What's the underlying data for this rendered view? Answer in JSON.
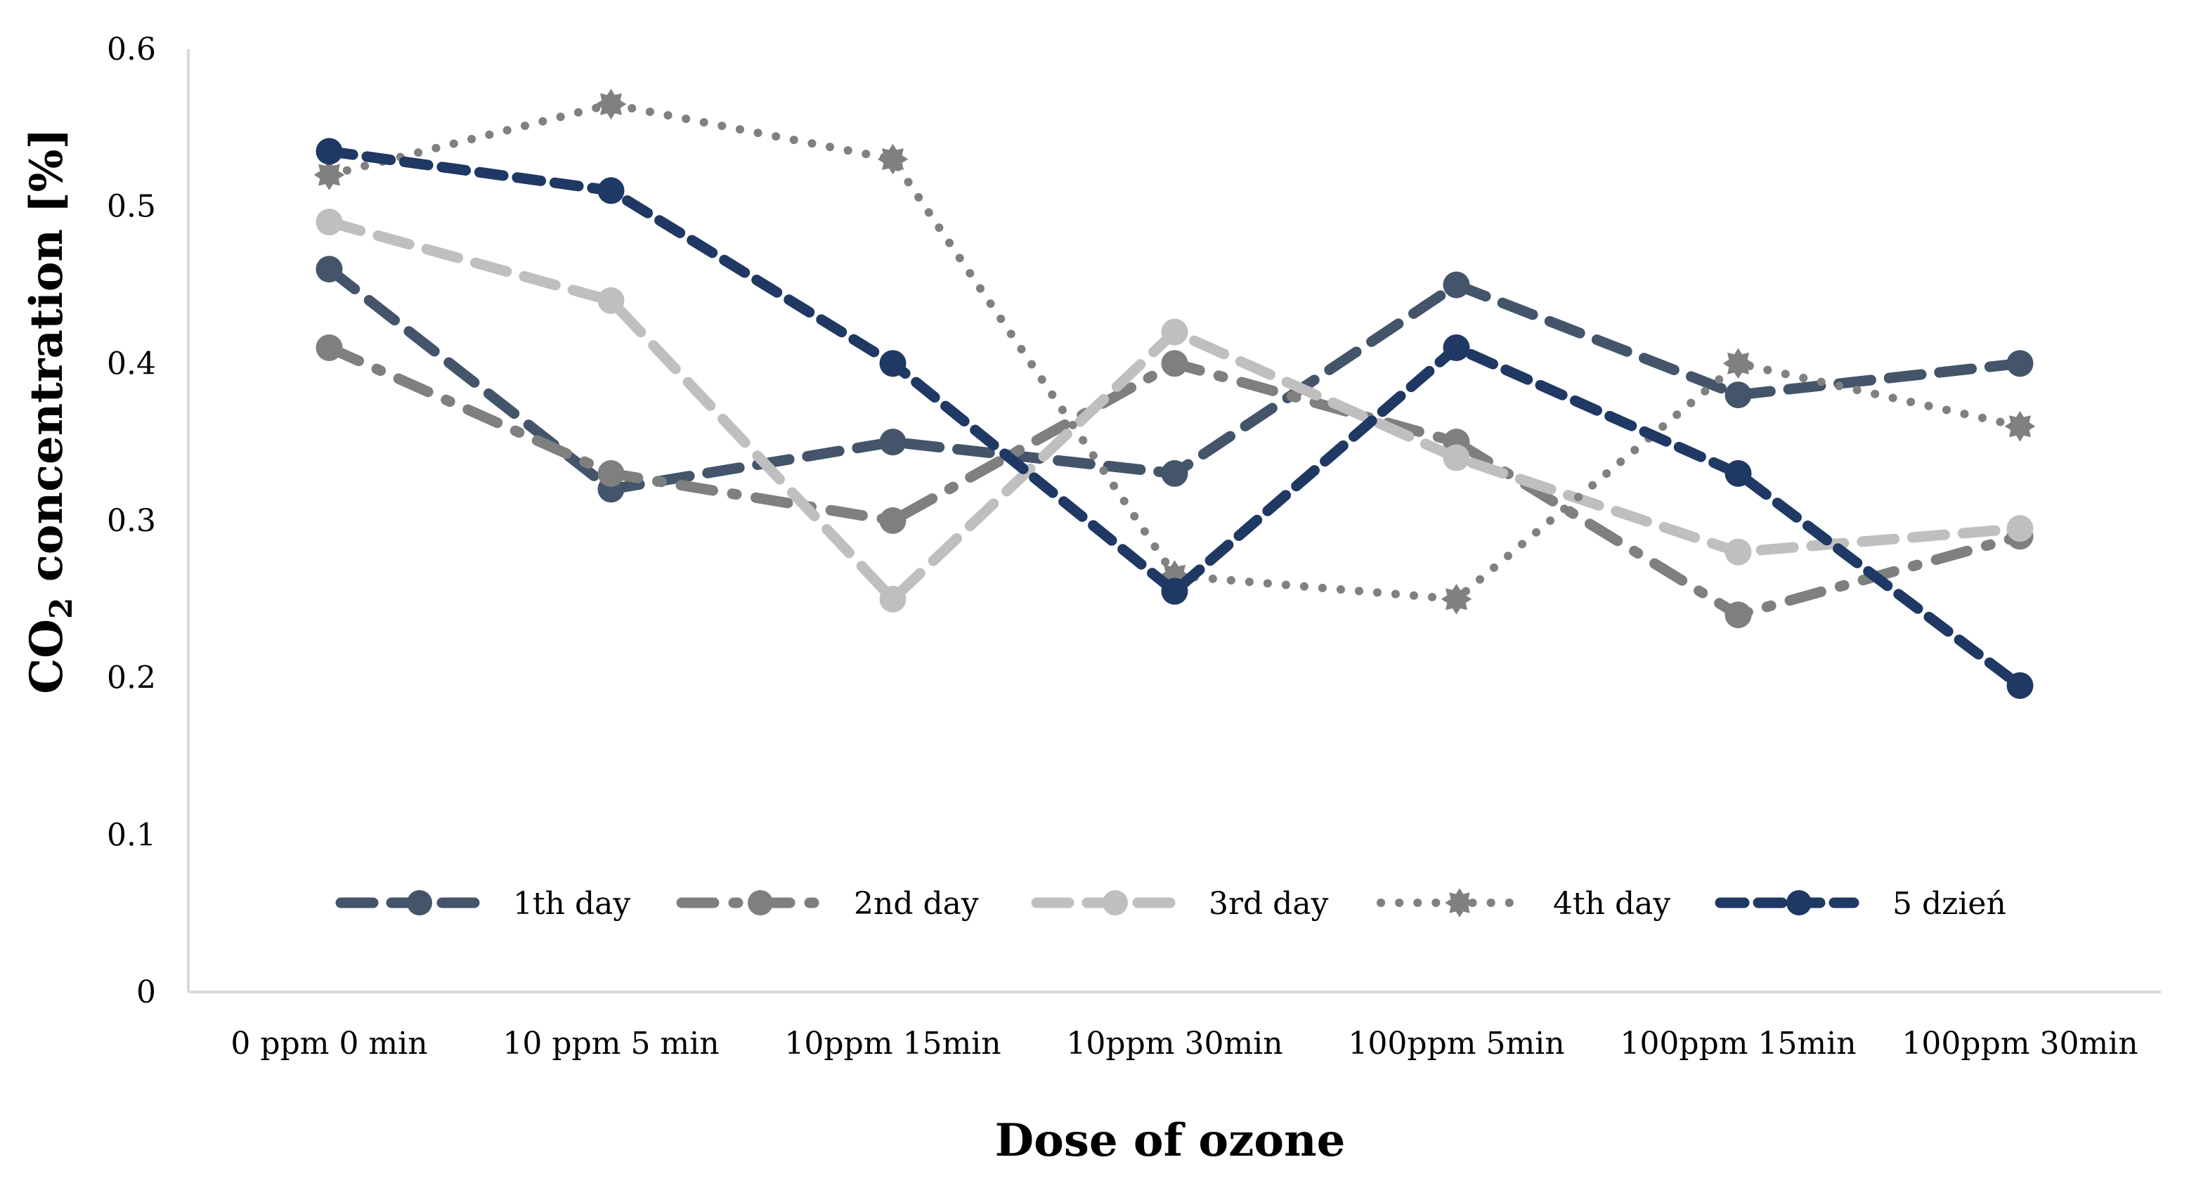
{
  "chart_data": {
    "type": "line",
    "title": "",
    "xlabel": "Dose of ozone",
    "ylabel": "CO2 concentration [%]",
    "ylabel_parts": {
      "before": "CO",
      "sub": "2",
      "after": " concentration [%]"
    },
    "ylim": [
      0,
      0.6
    ],
    "yticks": [
      "0",
      "0.1",
      "0.2",
      "0.3",
      "0.4",
      "0.5",
      "0.6"
    ],
    "ytick_values": [
      0,
      0.1,
      0.2,
      0.3,
      0.4,
      0.5,
      0.6
    ],
    "categories": [
      "0 ppm 0  min",
      "10 ppm 5 min",
      "10ppm 15min",
      "10ppm 30min",
      "100ppm 5min",
      "100ppm 15min",
      "100ppm 30min"
    ],
    "grid": false,
    "legend_position": "bottom-inside",
    "series": [
      {
        "name": "1th day",
        "values": [
          0.46,
          0.32,
          0.35,
          0.33,
          0.45,
          0.38,
          0.4
        ],
        "color": "#44546a",
        "dash": "long-dash",
        "marker": "circle"
      },
      {
        "name": "2nd day",
        "values": [
          0.41,
          0.33,
          0.3,
          0.4,
          0.35,
          0.24,
          0.29
        ],
        "color": "#7f7f7f",
        "dash": "long-dash-dot",
        "marker": "circle"
      },
      {
        "name": "3rd day",
        "values": [
          0.49,
          0.44,
          0.25,
          0.42,
          0.34,
          0.28,
          0.295
        ],
        "color": "#bfbfbf",
        "dash": "long-dash",
        "marker": "circle"
      },
      {
        "name": "4th day",
        "values": [
          0.52,
          0.565,
          0.53,
          0.265,
          0.25,
          0.4,
          0.36
        ],
        "color": "#808080",
        "dash": "dotted",
        "marker": "star"
      },
      {
        "name": "5 dzień",
        "values": [
          0.535,
          0.51,
          0.4,
          0.255,
          0.41,
          0.33,
          0.195
        ],
        "color": "#1f3864",
        "dash": "dashed",
        "marker": "circle"
      }
    ]
  }
}
